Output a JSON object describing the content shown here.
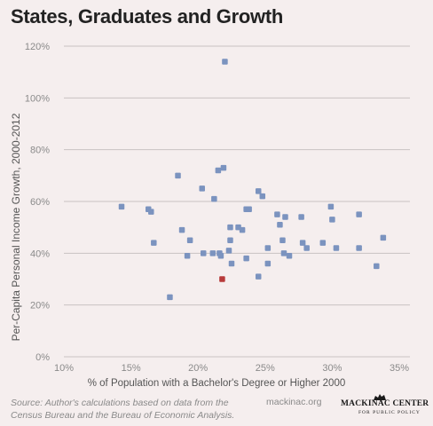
{
  "header": {
    "title": "States, Graduates and Growth"
  },
  "footer": {
    "source_line1": "Source: Author's calculations based on data from the",
    "source_line2": "Census Bureau and the Bureau of Economic Analysis.",
    "site": "mackinac.org",
    "logo_main": "MACKINAC CENTER",
    "logo_sub": "FOR PUBLIC POLICY"
  },
  "chart_data": {
    "type": "scatter",
    "xlabel": "% of Population with a Bachelor's Degree or Higher 2000",
    "ylabel": "Per-Capita Personal Income Growth, 2000-2012",
    "xlim": [
      10,
      35
    ],
    "ylim": [
      0,
      120
    ],
    "x_ticks": [
      "10%",
      "15%",
      "20%",
      "25%",
      "30%",
      "35%"
    ],
    "y_ticks": [
      "0%",
      "20%",
      "40%",
      "60%",
      "80%",
      "100%",
      "120%"
    ],
    "grid": "horizontal",
    "colors": {
      "points": "#7b93bf",
      "highlight": "#b73a3a",
      "grid": "#c9c3c3",
      "text": "#8a8a8a"
    },
    "points": [
      {
        "x": 14.3,
        "y": 58
      },
      {
        "x": 16.3,
        "y": 57
      },
      {
        "x": 16.5,
        "y": 56
      },
      {
        "x": 16.7,
        "y": 44
      },
      {
        "x": 17.9,
        "y": 23
      },
      {
        "x": 18.5,
        "y": 70
      },
      {
        "x": 18.8,
        "y": 49
      },
      {
        "x": 19.2,
        "y": 39
      },
      {
        "x": 19.4,
        "y": 45
      },
      {
        "x": 20.3,
        "y": 65
      },
      {
        "x": 20.4,
        "y": 40
      },
      {
        "x": 21.1,
        "y": 40
      },
      {
        "x": 21.2,
        "y": 61
      },
      {
        "x": 21.5,
        "y": 72
      },
      {
        "x": 21.6,
        "y": 40
      },
      {
        "x": 21.7,
        "y": 39
      },
      {
        "x": 21.9,
        "y": 73
      },
      {
        "x": 22.0,
        "y": 114
      },
      {
        "x": 22.3,
        "y": 41
      },
      {
        "x": 22.4,
        "y": 50
      },
      {
        "x": 22.4,
        "y": 45
      },
      {
        "x": 22.5,
        "y": 36
      },
      {
        "x": 23.0,
        "y": 50
      },
      {
        "x": 23.3,
        "y": 49
      },
      {
        "x": 23.6,
        "y": 57
      },
      {
        "x": 23.6,
        "y": 38
      },
      {
        "x": 23.8,
        "y": 57
      },
      {
        "x": 24.5,
        "y": 31
      },
      {
        "x": 24.5,
        "y": 64
      },
      {
        "x": 24.8,
        "y": 62
      },
      {
        "x": 25.2,
        "y": 42
      },
      {
        "x": 25.2,
        "y": 36
      },
      {
        "x": 25.9,
        "y": 55
      },
      {
        "x": 26.1,
        "y": 51
      },
      {
        "x": 26.3,
        "y": 45
      },
      {
        "x": 26.4,
        "y": 40
      },
      {
        "x": 26.5,
        "y": 54
      },
      {
        "x": 26.8,
        "y": 39
      },
      {
        "x": 27.7,
        "y": 54
      },
      {
        "x": 27.8,
        "y": 44
      },
      {
        "x": 28.1,
        "y": 42
      },
      {
        "x": 29.3,
        "y": 44
      },
      {
        "x": 29.9,
        "y": 58
      },
      {
        "x": 30.0,
        "y": 53
      },
      {
        "x": 30.3,
        "y": 42
      },
      {
        "x": 32.0,
        "y": 42
      },
      {
        "x": 32.0,
        "y": 55
      },
      {
        "x": 33.3,
        "y": 35
      },
      {
        "x": 33.8,
        "y": 46
      }
    ],
    "highlight": {
      "x": 21.8,
      "y": 30
    }
  }
}
